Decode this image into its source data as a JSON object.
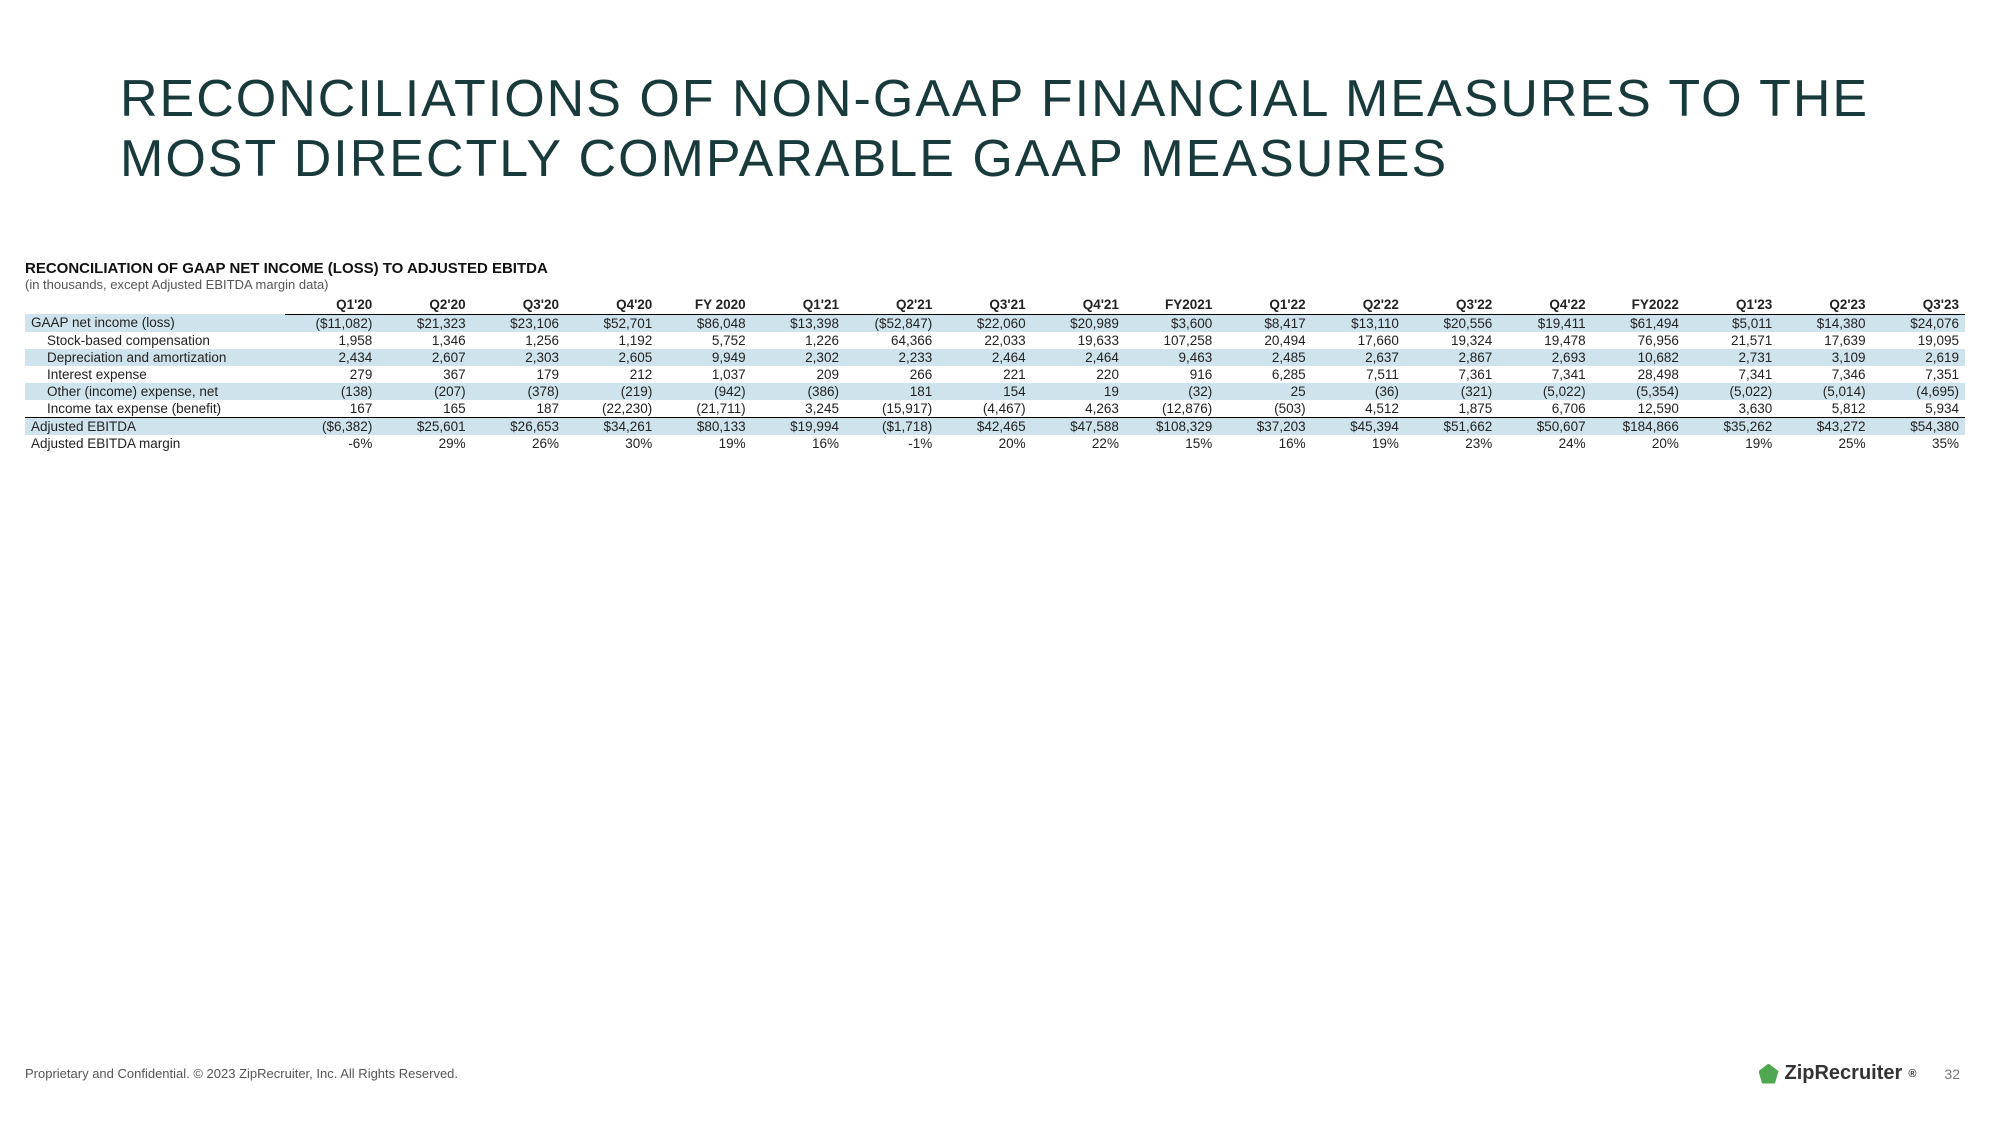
{
  "title": "RECONCILIATIONS OF NON-GAAP FINANCIAL MEASURES TO THE MOST DIRECTLY COMPARABLE GAAP MEASURES",
  "subheading": "RECONCILIATION OF GAAP NET INCOME (LOSS) TO ADJUSTED EBITDA",
  "subnote": "(in thousands, except Adjusted EBITDA margin data)",
  "columns": [
    "Q1'20",
    "Q2'20",
    "Q3'20",
    "Q4'20",
    "FY 2020",
    "Q1'21",
    "Q2'21",
    "Q3'21",
    "Q4'21",
    "FY2021",
    "Q1'22",
    "Q2'22",
    "Q3'22",
    "Q4'22",
    "FY2022",
    "Q1'23",
    "Q2'23",
    "Q3'23"
  ],
  "rows": [
    {
      "label": "GAAP net income (loss)",
      "band": true,
      "indent": false,
      "cells": [
        "($11,082)",
        "$21,323",
        "$23,106",
        "$52,701",
        "$86,048",
        "$13,398",
        "($52,847)",
        "$22,060",
        "$20,989",
        "$3,600",
        "$8,417",
        "$13,110",
        "$20,556",
        "$19,411",
        "$61,494",
        "$5,011",
        "$14,380",
        "$24,076"
      ]
    },
    {
      "label": "Stock-based compensation",
      "band": false,
      "indent": true,
      "cells": [
        "1,958",
        "1,346",
        "1,256",
        "1,192",
        "5,752",
        "1,226",
        "64,366",
        "22,033",
        "19,633",
        "107,258",
        "20,494",
        "17,660",
        "19,324",
        "19,478",
        "76,956",
        "21,571",
        "17,639",
        "19,095"
      ]
    },
    {
      "label": "Depreciation and amortization",
      "band": true,
      "indent": true,
      "cells": [
        "2,434",
        "2,607",
        "2,303",
        "2,605",
        "9,949",
        "2,302",
        "2,233",
        "2,464",
        "2,464",
        "9,463",
        "2,485",
        "2,637",
        "2,867",
        "2,693",
        "10,682",
        "2,731",
        "3,109",
        "2,619"
      ]
    },
    {
      "label": "Interest expense",
      "band": false,
      "indent": true,
      "cells": [
        "279",
        "367",
        "179",
        "212",
        "1,037",
        "209",
        "266",
        "221",
        "220",
        "916",
        "6,285",
        "7,511",
        "7,361",
        "7,341",
        "28,498",
        "7,341",
        "7,346",
        "7,351"
      ]
    },
    {
      "label": "Other (income) expense, net",
      "band": true,
      "indent": true,
      "cells": [
        "(138)",
        "(207)",
        "(378)",
        "(219)",
        "(942)",
        "(386)",
        "181",
        "154",
        "19",
        "(32)",
        "25",
        "(36)",
        "(321)",
        "(5,022)",
        "(5,354)",
        "(5,022)",
        "(5,014)",
        "(4,695)"
      ]
    },
    {
      "label": "Income tax expense (benefit)",
      "band": false,
      "indent": true,
      "cells": [
        "167",
        "165",
        "187",
        "(22,230)",
        "(21,711)",
        "3,245",
        "(15,917)",
        "(4,467)",
        "4,263",
        "(12,876)",
        "(503)",
        "4,512",
        "1,875",
        "6,706",
        "12,590",
        "3,630",
        "5,812",
        "5,934"
      ]
    },
    {
      "label": "Adjusted EBITDA",
      "band": true,
      "indent": false,
      "total": true,
      "cells": [
        "($6,382)",
        "$25,601",
        "$26,653",
        "$34,261",
        "$80,133",
        "$19,994",
        "($1,718)",
        "$42,465",
        "$47,588",
        "$108,329",
        "$37,203",
        "$45,394",
        "$51,662",
        "$50,607",
        "$184,866",
        "$35,262",
        "$43,272",
        "$54,380"
      ]
    },
    {
      "label": "Adjusted EBITDA margin",
      "band": false,
      "indent": false,
      "cells": [
        "-6%",
        "29%",
        "26%",
        "30%",
        "19%",
        "16%",
        "-1%",
        "20%",
        "22%",
        "15%",
        "16%",
        "19%",
        "23%",
        "24%",
        "20%",
        "19%",
        "25%",
        "35%"
      ]
    }
  ],
  "footer_left": "Proprietary and Confidential. © 2023 ZipRecruiter, Inc. All Rights Reserved.",
  "brand": "ZipRecruiter",
  "page_number": "32",
  "colors": {
    "title": "#193a3a",
    "band": "#cfe3ec",
    "text": "#222222"
  }
}
